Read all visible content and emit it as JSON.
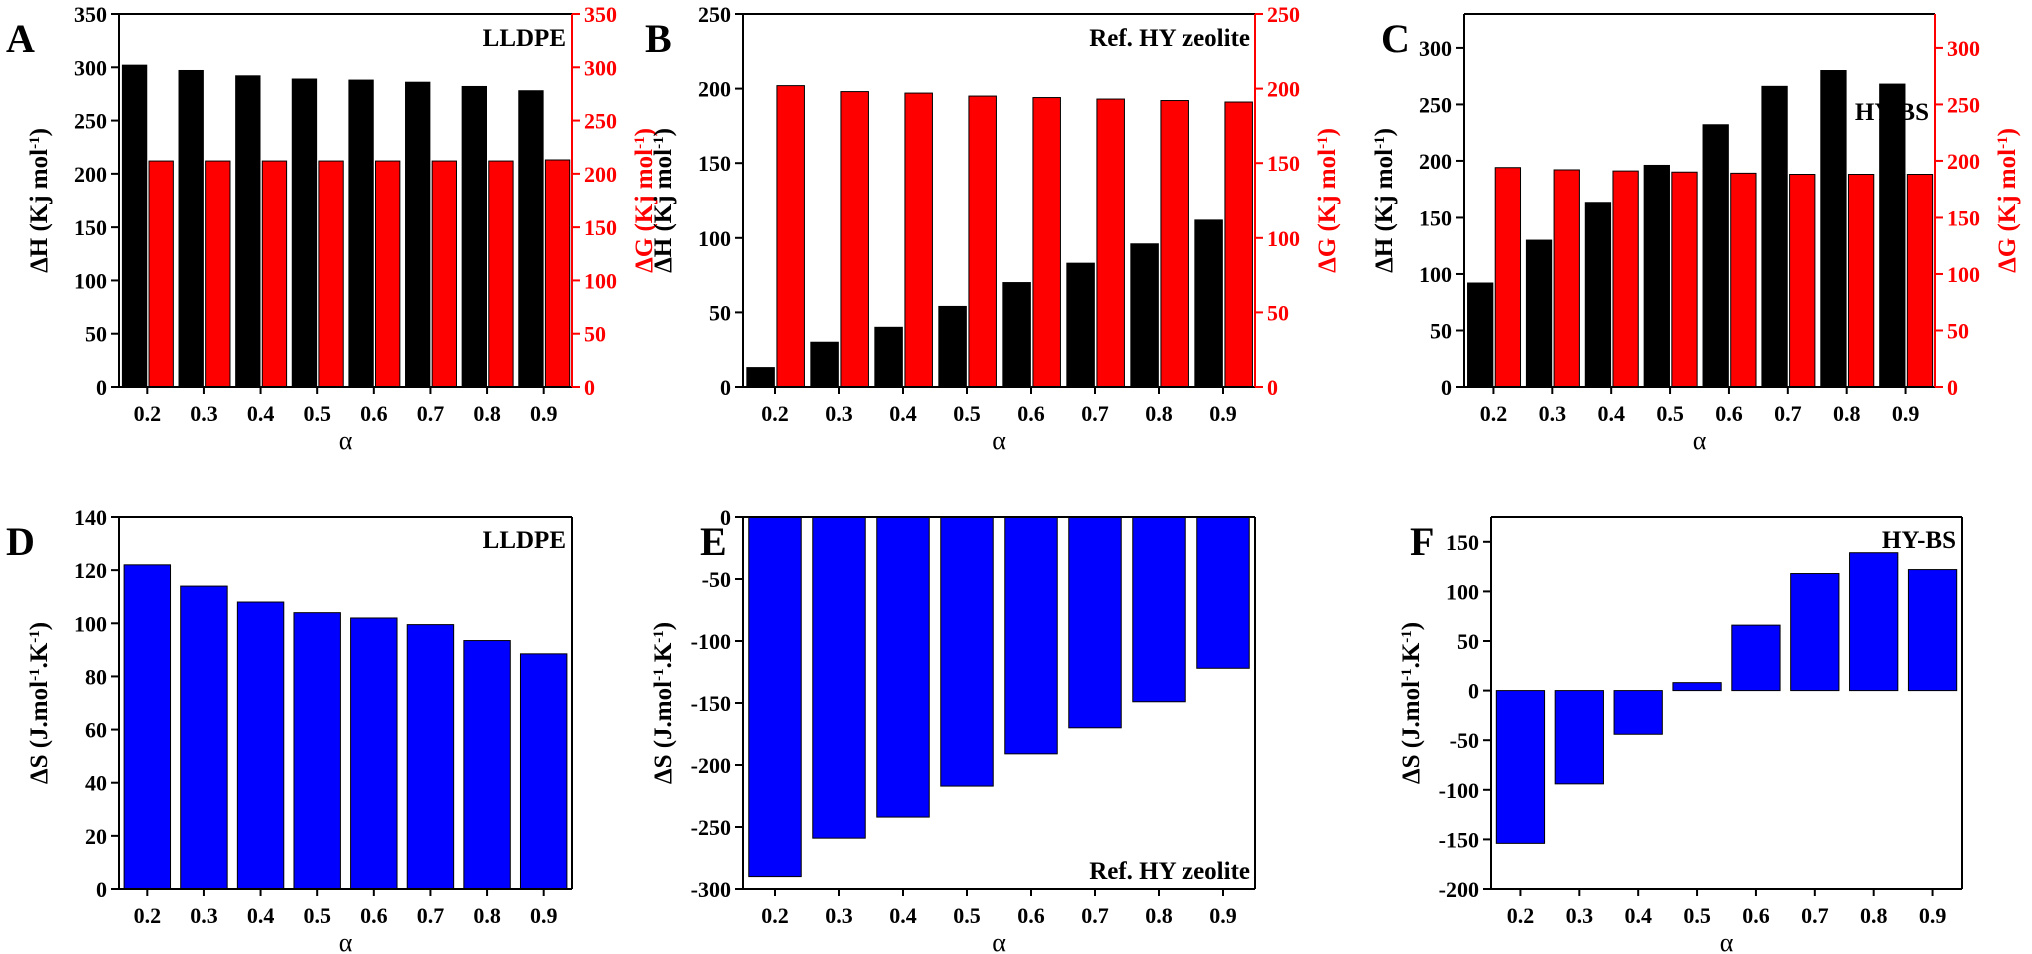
{
  "figure": {
    "xlabel_symbol": "α"
  },
  "chart_data": [
    {
      "panel": "A",
      "type": "bar",
      "title": "LLDPE",
      "categories": [
        "0.2",
        "0.3",
        "0.4",
        "0.5",
        "0.6",
        "0.7",
        "0.8",
        "0.9"
      ],
      "xlabel": "α",
      "ylabel": "ΔH (Kj mol⁻¹)",
      "ylabel_right": "ΔG (Kj mol⁻¹)",
      "ylim": [
        0,
        350
      ],
      "yticks": [
        0,
        50,
        100,
        150,
        200,
        250,
        300,
        350
      ],
      "series": [
        {
          "axis": "left",
          "color": "#000000",
          "values": [
            302,
            297,
            292,
            289,
            288,
            286,
            282,
            278
          ]
        },
        {
          "axis": "right",
          "color": "#ff0000",
          "values": [
            212,
            212,
            212,
            212,
            212,
            212,
            212,
            213
          ]
        }
      ],
      "grid": false
    },
    {
      "panel": "B",
      "type": "bar",
      "title": "Ref. HY zeolite",
      "categories": [
        "0.2",
        "0.3",
        "0.4",
        "0.5",
        "0.6",
        "0.7",
        "0.8",
        "0.9"
      ],
      "xlabel": "α",
      "ylabel": "ΔH (Kj mol⁻¹)",
      "ylabel_right": "ΔG (Kj mol⁻¹)",
      "ylim": [
        0,
        250
      ],
      "yticks": [
        0,
        50,
        100,
        150,
        200,
        250
      ],
      "series": [
        {
          "axis": "left",
          "color": "#000000",
          "values": [
            13,
            30,
            40,
            54,
            70,
            83,
            96,
            112
          ]
        },
        {
          "axis": "right",
          "color": "#ff0000",
          "values": [
            202,
            198,
            197,
            195,
            194,
            193,
            192,
            191
          ]
        }
      ],
      "grid": false
    },
    {
      "panel": "C",
      "type": "bar",
      "title": "HY-BS",
      "categories": [
        "0.2",
        "0.3",
        "0.4",
        "0.5",
        "0.6",
        "0.7",
        "0.8",
        "0.9"
      ],
      "xlabel": "α",
      "ylabel": "ΔH (Kj mol⁻¹)",
      "ylabel_right": "ΔG (Kj mol⁻¹)",
      "ylim": [
        0,
        330
      ],
      "yticks": [
        0,
        50,
        100,
        150,
        200,
        250,
        300
      ],
      "series": [
        {
          "axis": "left",
          "color": "#000000",
          "values": [
            92,
            130,
            163,
            196,
            232,
            266,
            280,
            268
          ]
        },
        {
          "axis": "right",
          "color": "#ff0000",
          "values": [
            194,
            192,
            191,
            190,
            189,
            188,
            188,
            188
          ]
        }
      ],
      "grid": false
    },
    {
      "panel": "D",
      "type": "bar",
      "title": "LLDPE",
      "categories": [
        "0.2",
        "0.3",
        "0.4",
        "0.5",
        "0.6",
        "0.7",
        "0.8",
        "0.9"
      ],
      "xlabel": "α",
      "ylabel": "ΔS (J.mol⁻¹.K⁻¹)",
      "ylim": [
        0,
        140
      ],
      "yticks": [
        0,
        20,
        40,
        60,
        80,
        100,
        120,
        140
      ],
      "series": [
        {
          "axis": "left",
          "color": "#0000ff",
          "values": [
            122,
            114,
            108,
            104,
            102,
            99.5,
            93.5,
            88.5
          ]
        }
      ],
      "grid": false
    },
    {
      "panel": "E",
      "type": "bar",
      "title": "Ref. HY zeolite",
      "categories": [
        "0.2",
        "0.3",
        "0.4",
        "0.5",
        "0.6",
        "0.7",
        "0.8",
        "0.9"
      ],
      "xlabel": "α",
      "ylabel": "ΔS (J.mol⁻¹.K⁻¹)",
      "ylim": [
        -300,
        0
      ],
      "yticks": [
        -300,
        -250,
        -200,
        -150,
        -100,
        -50,
        0
      ],
      "series": [
        {
          "axis": "left",
          "color": "#0000ff",
          "values": [
            -290,
            -259,
            -242,
            -217,
            -191,
            -170,
            -149,
            -122
          ]
        }
      ],
      "grid": false
    },
    {
      "panel": "F",
      "type": "bar",
      "title": "HY-BS",
      "categories": [
        "0.2",
        "0.3",
        "0.4",
        "0.5",
        "0.6",
        "0.7",
        "0.8",
        "0.9"
      ],
      "xlabel": "α",
      "ylabel": "ΔS (J.mol⁻¹.K⁻¹)",
      "ylim": [
        -200,
        175
      ],
      "yticks": [
        -200,
        -150,
        -100,
        -50,
        0,
        50,
        100,
        150
      ],
      "series": [
        {
          "axis": "left",
          "color": "#0000ff",
          "values": [
            -154,
            -94,
            -44,
            8,
            66,
            118,
            139,
            122
          ]
        }
      ],
      "grid": false
    }
  ]
}
